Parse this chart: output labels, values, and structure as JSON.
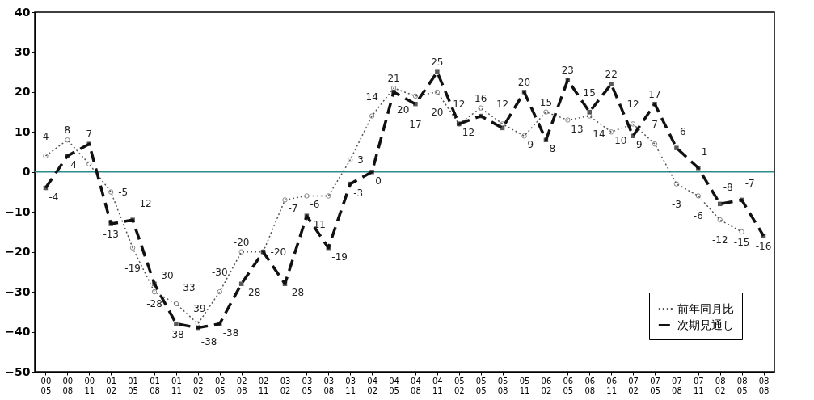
{
  "chart_data": {
    "type": "line",
    "categories": [
      "00\n05",
      "00\n08",
      "00\n11",
      "01\n02",
      "01\n05",
      "01\n08",
      "01\n11",
      "02\n02",
      "02\n05",
      "02\n08",
      "02\n11",
      "03\n02",
      "03\n05",
      "03\n08",
      "03\n11",
      "04\n02",
      "04\n05",
      "04\n08",
      "04\n11",
      "05\n02",
      "05\n05",
      "05\n08",
      "05\n11",
      "06\n02",
      "06\n05",
      "06\n08",
      "06\n11",
      "07\n02",
      "07\n05",
      "07\n08",
      "07\n11",
      "08\n02",
      "08\n05",
      "08\n08"
    ],
    "series": [
      {
        "name": "前年同月比",
        "color": "#555555",
        "marker": "circle",
        "line_style": "dotted",
        "values": [
          4,
          8,
          2,
          -5,
          -19,
          -30,
          -33,
          -38,
          -30,
          -20,
          -20,
          -7,
          -6,
          -6,
          3,
          14,
          21,
          19,
          20,
          12,
          16,
          12,
          9,
          15,
          13,
          14,
          10,
          12,
          7,
          -3,
          -6,
          -12,
          -15,
          null
        ],
        "value_labels": [
          "4",
          "8",
          null,
          "-5",
          "-19",
          "-30",
          "-33",
          "-38",
          "-30",
          "-20",
          "-20",
          "-7",
          "-6",
          null,
          "3",
          "14",
          "21",
          null,
          "20",
          "12",
          "16",
          "12",
          "9",
          "15",
          "13",
          "14",
          "10",
          "12",
          "7",
          "-3",
          "-6",
          "-12",
          "-15",
          null
        ]
      },
      {
        "name": "次期見通し",
        "color": "#111111",
        "marker": "square",
        "line_style": "dashed",
        "values": [
          -4,
          4,
          7,
          -13,
          -12,
          -28,
          -38,
          -39,
          -38,
          -28,
          -20,
          -28,
          -11,
          -19,
          -3,
          0,
          20,
          17,
          25,
          12,
          14,
          11,
          20,
          8,
          23,
          15,
          22,
          9,
          17,
          6,
          1,
          -8,
          -7,
          -16
        ],
        "value_labels": [
          "-4",
          "4",
          "7",
          "-13",
          "-12",
          "-28",
          "-38",
          "-39",
          "-38",
          "-28",
          null,
          "-28",
          "-11",
          "-19",
          "-3",
          "0",
          "20",
          "17",
          "25",
          "12",
          null,
          null,
          "20",
          "8",
          "23",
          "15",
          "22",
          "9",
          "17",
          "6",
          "1",
          "-8",
          "-7",
          "-16"
        ]
      }
    ],
    "ylim": [
      -50,
      40
    ],
    "yticks": [
      -50,
      -40,
      -30,
      -20,
      -10,
      0,
      10,
      20,
      30,
      40
    ],
    "ref_lines": [
      {
        "axis": "y",
        "value": 0,
        "color": "#2e8b8b"
      }
    ],
    "grid": false,
    "legend": "bottom right"
  }
}
